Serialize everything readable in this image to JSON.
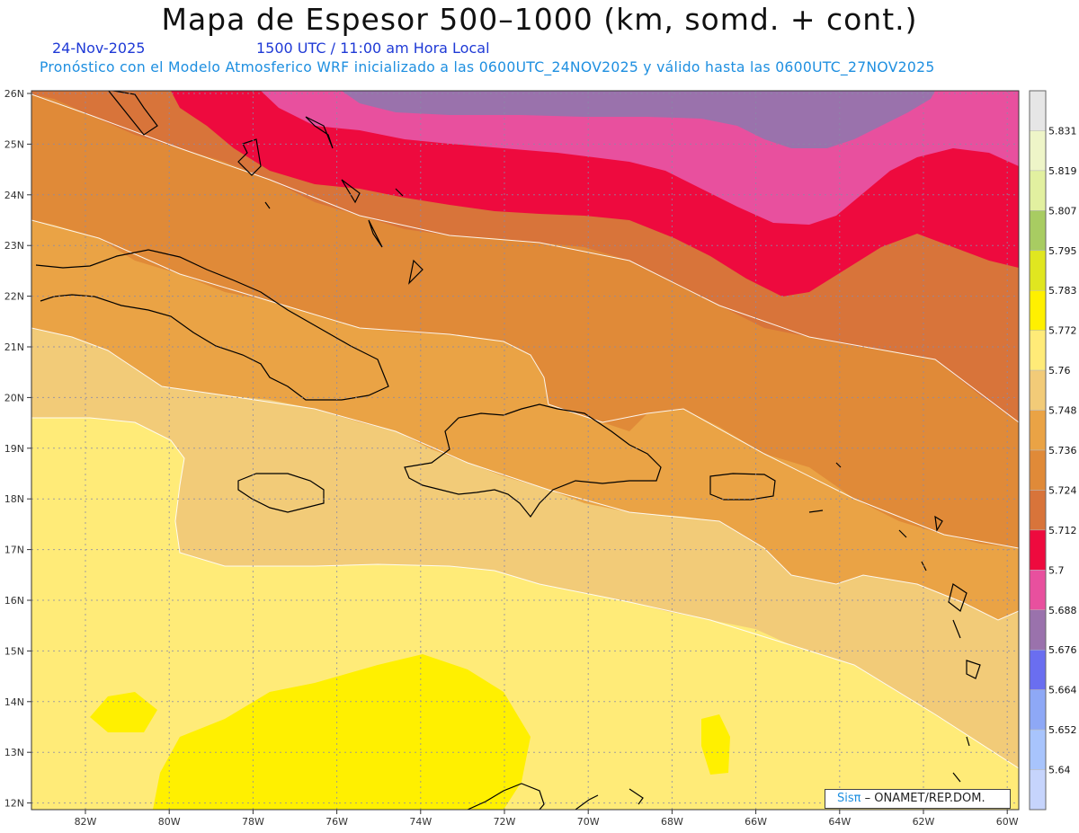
{
  "header": {
    "title": "Mapa de Espesor 500–1000 (km, somd. + cont.)",
    "date": "24-Nov-2025",
    "time": "1500 UTC / 11:00 am Hora Local",
    "forecast": "Pronóstico con el Modelo Atmosferico WRF inicializado a las 0600UTC_24NOV2025 y válido hasta las  0600UTC_27NOV2025"
  },
  "map": {
    "lon_labels": [
      "82W",
      "80W",
      "78W",
      "76W",
      "74W",
      "72W",
      "70W",
      "68W",
      "66W",
      "64W",
      "62W",
      "60W"
    ],
    "lat_labels": [
      "26N",
      "25N",
      "24N",
      "23N",
      "22N",
      "21N",
      "20N",
      "19N",
      "18N",
      "17N",
      "16N",
      "15N",
      "14N",
      "13N",
      "12N"
    ],
    "islands": [
      "Cuba",
      "Jamaica",
      "Hispaniola",
      "Puerto Rico",
      "Bahamas",
      "Lesser Antilles"
    ]
  },
  "colorbar": {
    "levels": [
      "5.831",
      "5.819",
      "5.807",
      "5.795",
      "5.783",
      "5.772",
      "5.76",
      "5.748",
      "5.736",
      "5.724",
      "5.712",
      "5.7",
      "5.688",
      "5.676",
      "5.664",
      "5.652",
      "5.64"
    ],
    "colors": [
      "#e6e6e6",
      "#eef5c8",
      "#e2f0a0",
      "#a8cc62",
      "#e0e620",
      "#fff000",
      "#ffeb78",
      "#f2cb78",
      "#eaa345",
      "#e08a38",
      "#d8743a",
      "#ee0a3e",
      "#e8509e",
      "#9a72ac",
      "#6a6ef0",
      "#8ea8f6",
      "#a8c4fc",
      "#c6d4fc"
    ]
  },
  "credit": {
    "brand": "Sisπ",
    "text": "– ONAMET/REP.DOM."
  }
}
